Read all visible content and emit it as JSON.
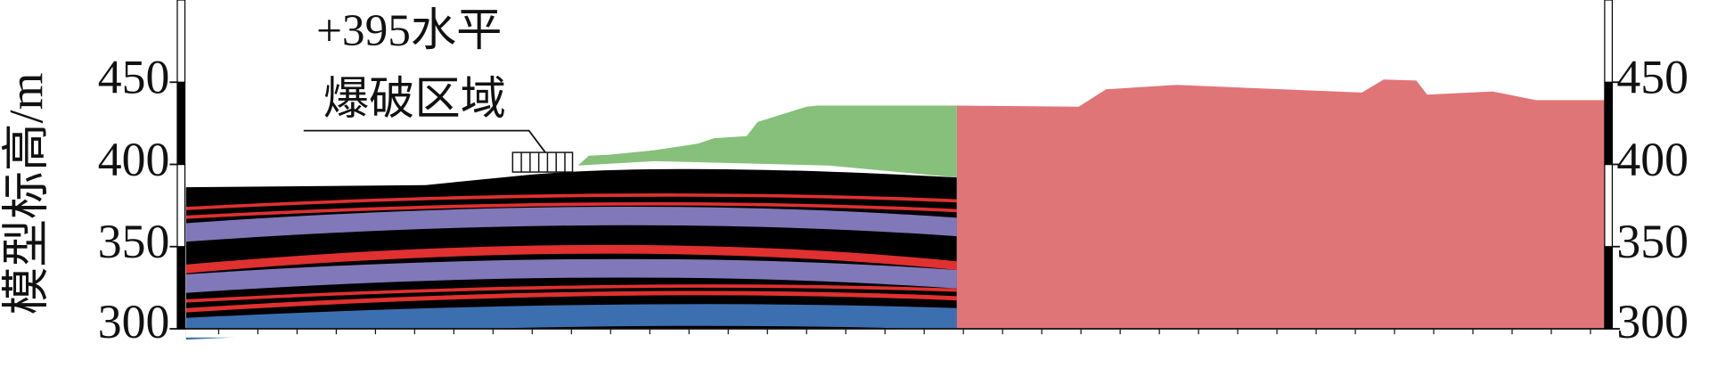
{
  "chart_data": {
    "type": "section",
    "y_label": "模型标高/m",
    "annotation": [
      "+395水平",
      "爆破区域"
    ],
    "ylim": [
      300,
      500
    ],
    "yticks": [
      300,
      350,
      400,
      450
    ]
  }
}
